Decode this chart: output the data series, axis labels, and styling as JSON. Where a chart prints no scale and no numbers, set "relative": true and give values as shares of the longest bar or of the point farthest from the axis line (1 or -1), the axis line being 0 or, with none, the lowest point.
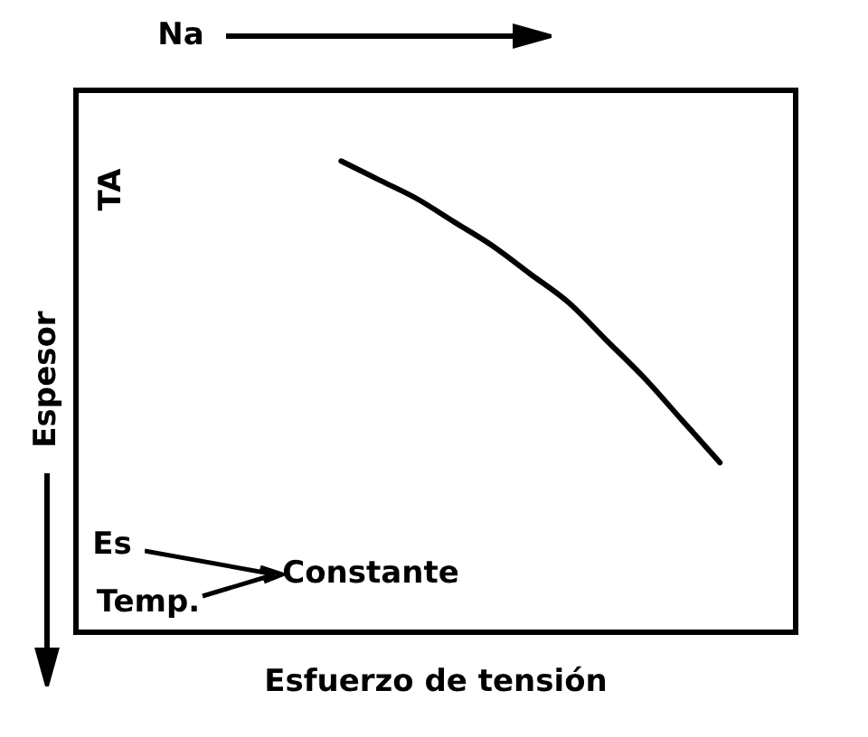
{
  "chart_data": {
    "type": "line",
    "relative": true,
    "xlabel": "Esfuerzo de tensión",
    "ylabel": "Espesor",
    "annotations": [
      "Na",
      "TA",
      "Es",
      "Temp.",
      "Constante"
    ],
    "categories": [
      null,
      null,
      null,
      null,
      null,
      null,
      null,
      null,
      null,
      null,
      null,
      null,
      null,
      null,
      null,
      null,
      null,
      null,
      null,
      null
    ],
    "series": [
      {
        "color": "#000000",
        "values": [
          null,
          null,
          null,
          null,
          null,
          null,
          null,
          1.0,
          0.96,
          0.92,
          0.87,
          0.82,
          0.76,
          0.7,
          0.62,
          0.54,
          0.45,
          0.36,
          null,
          null
        ]
      }
    ],
    "marker": "none",
    "line_style": "solid"
  }
}
